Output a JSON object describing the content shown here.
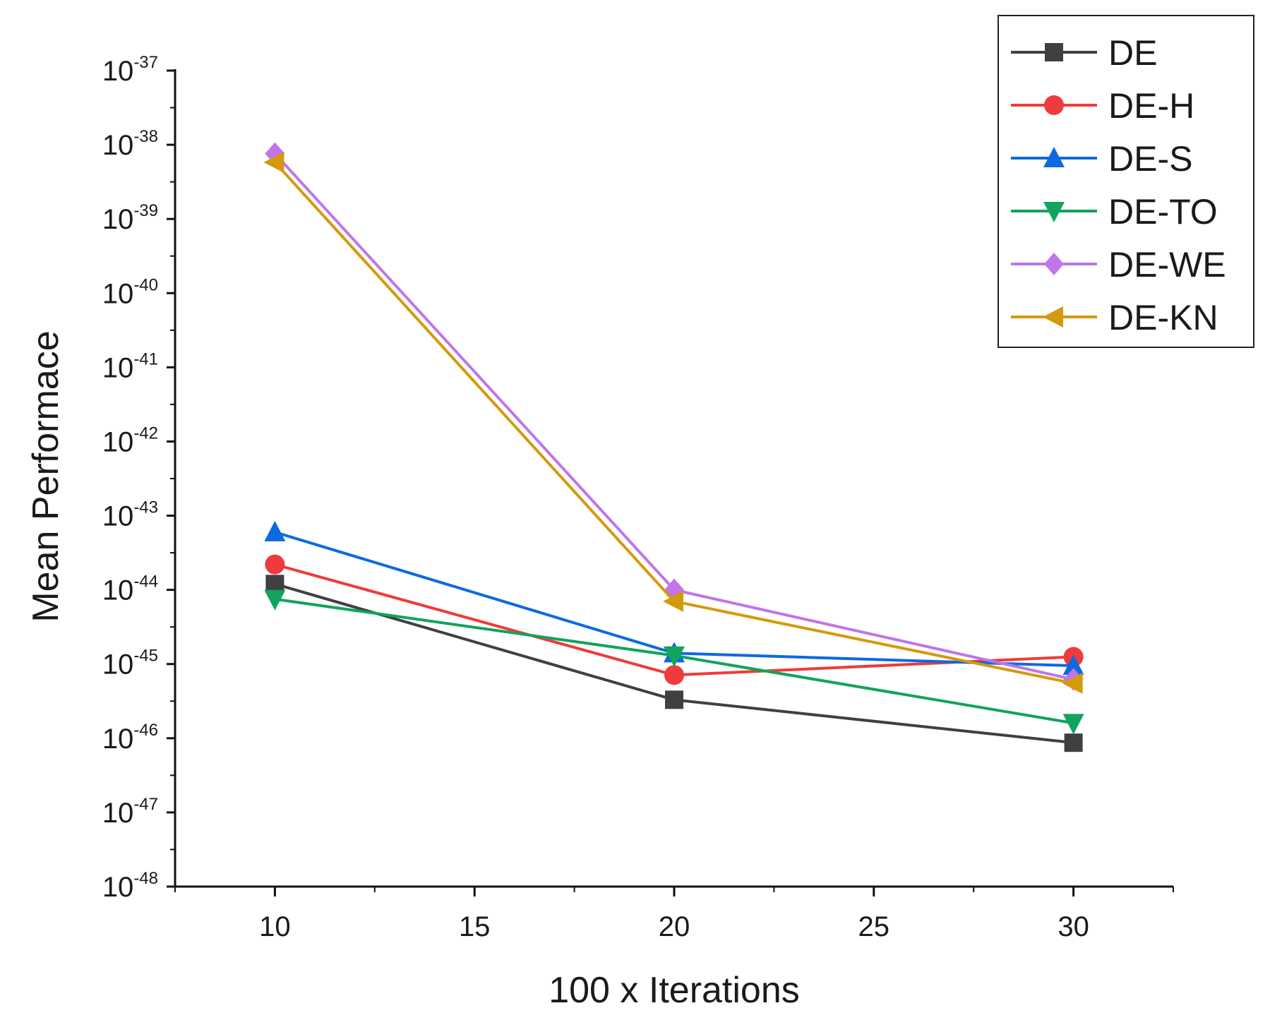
{
  "chart_data": {
    "type": "line",
    "title": "",
    "xlabel": "100 x Iterations",
    "ylabel": "Mean Performace",
    "yscale": "log",
    "x": [
      10,
      20,
      30
    ],
    "xlim": [
      7.5,
      32.5
    ],
    "xticks": [
      10,
      15,
      20,
      25,
      30
    ],
    "ylim_exponent": [
      -48,
      -37
    ],
    "ytick_exponents": [
      -37,
      -38,
      -39,
      -40,
      -41,
      -42,
      -43,
      -44,
      -45,
      -46,
      -47,
      -48
    ],
    "ytick_base": "10",
    "legend_position": "top-right",
    "series": [
      {
        "name": "DE",
        "color": "#404040",
        "marker": "square",
        "values": [
          1.2e-44,
          3.3e-46,
          8.7e-47
        ]
      },
      {
        "name": "DE-H",
        "color": "#ef3b3b",
        "marker": "circle",
        "values": [
          2.2e-44,
          7.1e-46,
          1.25e-45
        ]
      },
      {
        "name": "DE-S",
        "color": "#0d6ae0",
        "marker": "triangle-up",
        "values": [
          6e-44,
          1.4e-45,
          9.5e-46
        ]
      },
      {
        "name": "DE-TO",
        "color": "#12a35e",
        "marker": "triangle-down",
        "values": [
          7.5e-45,
          1.3e-45,
          1.6e-46
        ]
      },
      {
        "name": "DE-WE",
        "color": "#c175e6",
        "marker": "diamond",
        "values": [
          7.6e-39,
          1e-44,
          6.2e-46
        ]
      },
      {
        "name": "DE-KN",
        "color": "#d49a0d",
        "marker": "triangle-left",
        "values": [
          5.8e-39,
          7e-45,
          5.5e-46
        ]
      }
    ]
  }
}
